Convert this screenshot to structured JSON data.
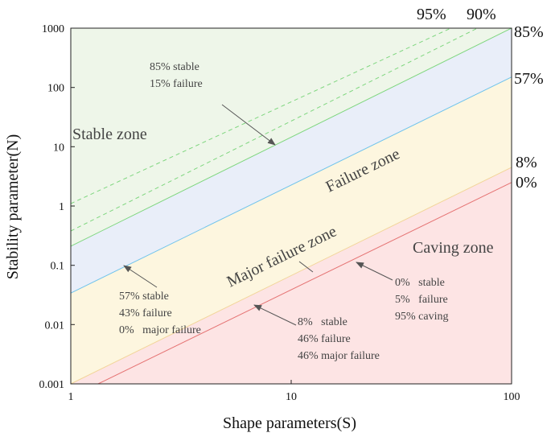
{
  "chart_data": {
    "type": "area",
    "title": "",
    "xlabel": "Shape parameters(S)",
    "ylabel": "Stability parameter(N)",
    "x_scale": "log",
    "y_scale": "log",
    "xlim": [
      1,
      100
    ],
    "ylim": [
      0.001,
      1000
    ],
    "x_ticks": [
      "1",
      "10",
      "100"
    ],
    "y_ticks": [
      "0.001",
      "0.01",
      "0.1",
      "1",
      "10",
      "100",
      "1000"
    ],
    "lines": [
      {
        "label": "95%",
        "style": "dashed",
        "color": "#7fd67f",
        "points": [
          [
            1,
            1.1
          ],
          [
            53,
            1000
          ]
        ]
      },
      {
        "label": "90%",
        "style": "dashed",
        "color": "#7fd67f",
        "points": [
          [
            1,
            0.38
          ],
          [
            70,
            1000
          ]
        ]
      },
      {
        "label": "85%",
        "style": "solid",
        "color": "#7fd67f",
        "points": [
          [
            1,
            0.21
          ],
          [
            100,
            1000
          ]
        ]
      },
      {
        "label": "57%",
        "style": "solid",
        "color": "#6fc3ec",
        "points": [
          [
            1,
            0.034
          ],
          [
            100,
            150
          ]
        ]
      },
      {
        "label": "8%",
        "style": "solid",
        "color": "#f2d59a",
        "points": [
          [
            1,
            0.001
          ],
          [
            100,
            4.5
          ]
        ]
      },
      {
        "label": "0%",
        "style": "solid",
        "color": "#e57373",
        "points": [
          [
            1.33,
            0.001
          ],
          [
            100,
            2.5
          ]
        ]
      }
    ],
    "zones": [
      {
        "name": "Stable zone",
        "color": "#eef6e9"
      },
      {
        "name": "Failure zone",
        "color": "#e9eef9"
      },
      {
        "name": "Major failure zone",
        "color": "#fdf6df"
      },
      {
        "name": "Caving zone",
        "color": "#fde4e4"
      }
    ],
    "annotations": [
      {
        "lines": [
          "85% stable",
          "15% failure"
        ]
      },
      {
        "lines": [
          "57% stable",
          "43% failure",
          "0%   major failure"
        ]
      },
      {
        "lines": [
          "8%   stable",
          "46% failure",
          "46% major failure"
        ]
      },
      {
        "lines": [
          "0%   stable",
          "5%   failure",
          "95% caving"
        ]
      }
    ]
  }
}
